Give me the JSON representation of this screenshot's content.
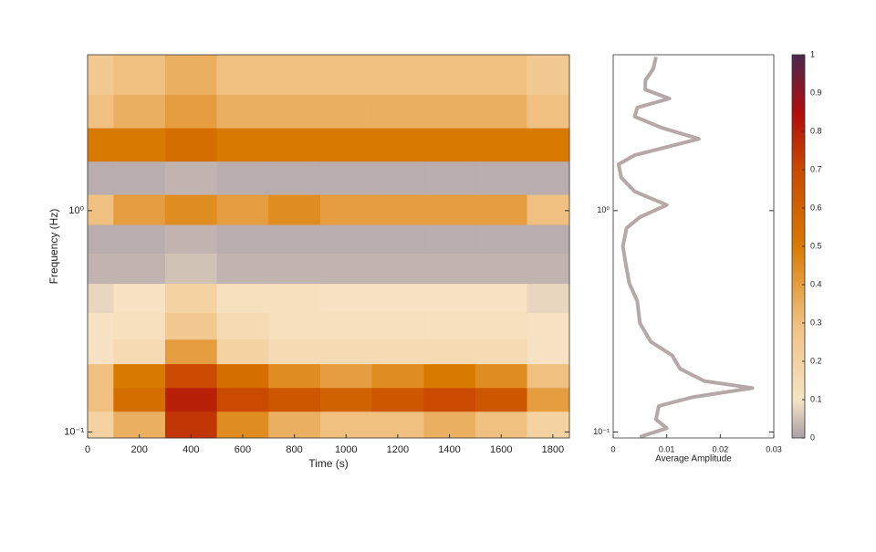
{
  "chart_data": [
    {
      "type": "heatmap",
      "xlabel": "Time (s)",
      "ylabel": "Frequency (Hz)",
      "x": [
        0,
        200,
        400,
        600,
        800,
        1000,
        1200,
        1400,
        1600,
        1800
      ],
      "y": [
        0.11,
        0.14,
        0.18,
        0.23,
        0.3,
        0.4,
        0.55,
        0.75,
        1.0,
        1.4,
        2.0,
        2.8,
        4.0
      ],
      "values": [
        [
          0.2,
          0.35,
          0.75,
          0.45,
          0.35,
          0.3,
          0.3,
          0.35,
          0.3,
          0.2
        ],
        [
          0.3,
          0.55,
          0.8,
          0.7,
          0.65,
          0.6,
          0.65,
          0.7,
          0.65,
          0.4
        ],
        [
          0.3,
          0.5,
          0.7,
          0.55,
          0.45,
          0.4,
          0.45,
          0.5,
          0.45,
          0.3
        ],
        [
          0.1,
          0.15,
          0.4,
          0.2,
          0.15,
          0.15,
          0.15,
          0.15,
          0.15,
          0.1
        ],
        [
          0.1,
          0.12,
          0.25,
          0.15,
          0.12,
          0.12,
          0.12,
          0.12,
          0.12,
          0.1
        ],
        [
          0.08,
          0.1,
          0.2,
          0.12,
          0.12,
          0.1,
          0.1,
          0.1,
          0.1,
          0.08
        ],
        [
          0.03,
          0.03,
          0.05,
          0.03,
          0.03,
          0.03,
          0.03,
          0.03,
          0.03,
          0.03
        ],
        [
          0.02,
          0.02,
          0.03,
          0.02,
          0.02,
          0.02,
          0.02,
          0.02,
          0.02,
          0.02
        ],
        [
          0.3,
          0.4,
          0.45,
          0.4,
          0.45,
          0.4,
          0.4,
          0.4,
          0.4,
          0.3
        ],
        [
          0.02,
          0.02,
          0.03,
          0.02,
          0.02,
          0.02,
          0.02,
          0.02,
          0.02,
          0.02
        ],
        [
          0.5,
          0.5,
          0.55,
          0.5,
          0.5,
          0.5,
          0.5,
          0.5,
          0.5,
          0.5
        ],
        [
          0.3,
          0.35,
          0.4,
          0.35,
          0.35,
          0.35,
          0.35,
          0.35,
          0.35,
          0.3
        ],
        [
          0.25,
          0.3,
          0.35,
          0.3,
          0.3,
          0.3,
          0.3,
          0.3,
          0.3,
          0.25
        ]
      ],
      "xlim": [
        0,
        1864
      ],
      "xticks": [
        0,
        200,
        400,
        600,
        800,
        1000,
        1200,
        1400,
        1600,
        1800
      ],
      "ylim": [
        0.094,
        5.06
      ],
      "log_y": true,
      "yticks": [
        {
          "value": 0.1,
          "label": "10⁻¹"
        },
        {
          "value": 1,
          "label": "10⁰"
        }
      ],
      "colorscale": [
        [
          0,
          "#aaa0a8"
        ],
        [
          0.1,
          "#f7e3c4"
        ],
        [
          0.3,
          "#f0c080"
        ],
        [
          0.5,
          "#d97a00"
        ],
        [
          0.7,
          "#c94a00"
        ],
        [
          0.85,
          "#b00c0c"
        ],
        [
          1,
          "#4a2850"
        ]
      ],
      "clim": [
        0,
        1
      ],
      "cticks": [
        0,
        0.1,
        0.2,
        0.3,
        0.4,
        0.5,
        0.6,
        0.7,
        0.8,
        0.9,
        1
      ]
    },
    {
      "type": "line",
      "xlabel": "Average Amplitude",
      "x": [
        0.005,
        0.01,
        0.008,
        0.0085,
        0.015,
        0.026,
        0.017,
        0.0125,
        0.011,
        0.007,
        0.005,
        0.0045,
        0.003,
        0.0025,
        0.0018,
        0.0025,
        0.005,
        0.01,
        0.004,
        0.0015,
        0.001,
        0.004,
        0.016,
        0.009,
        0.004,
        0.0045,
        0.0105,
        0.006,
        0.006,
        0.0075,
        0.008
      ],
      "y": [
        0.095,
        0.104,
        0.114,
        0.131,
        0.144,
        0.158,
        0.17,
        0.193,
        0.222,
        0.256,
        0.31,
        0.39,
        0.47,
        0.545,
        0.69,
        0.835,
        0.935,
        1.06,
        1.22,
        1.41,
        1.62,
        1.78,
        2.11,
        2.37,
        2.66,
        2.92,
        3.21,
        3.52,
        3.87,
        4.38,
        4.95
      ],
      "color": "#b5a8a8",
      "xlim": [
        0,
        0.03
      ],
      "xticks": [
        0,
        0.01,
        0.02,
        0.03
      ],
      "ylim": [
        0.094,
        5.06
      ],
      "log_y": true,
      "yticks": [
        {
          "value": 0.1,
          "label": "10⁻¹"
        },
        {
          "value": 1,
          "label": "10⁰"
        }
      ]
    }
  ]
}
